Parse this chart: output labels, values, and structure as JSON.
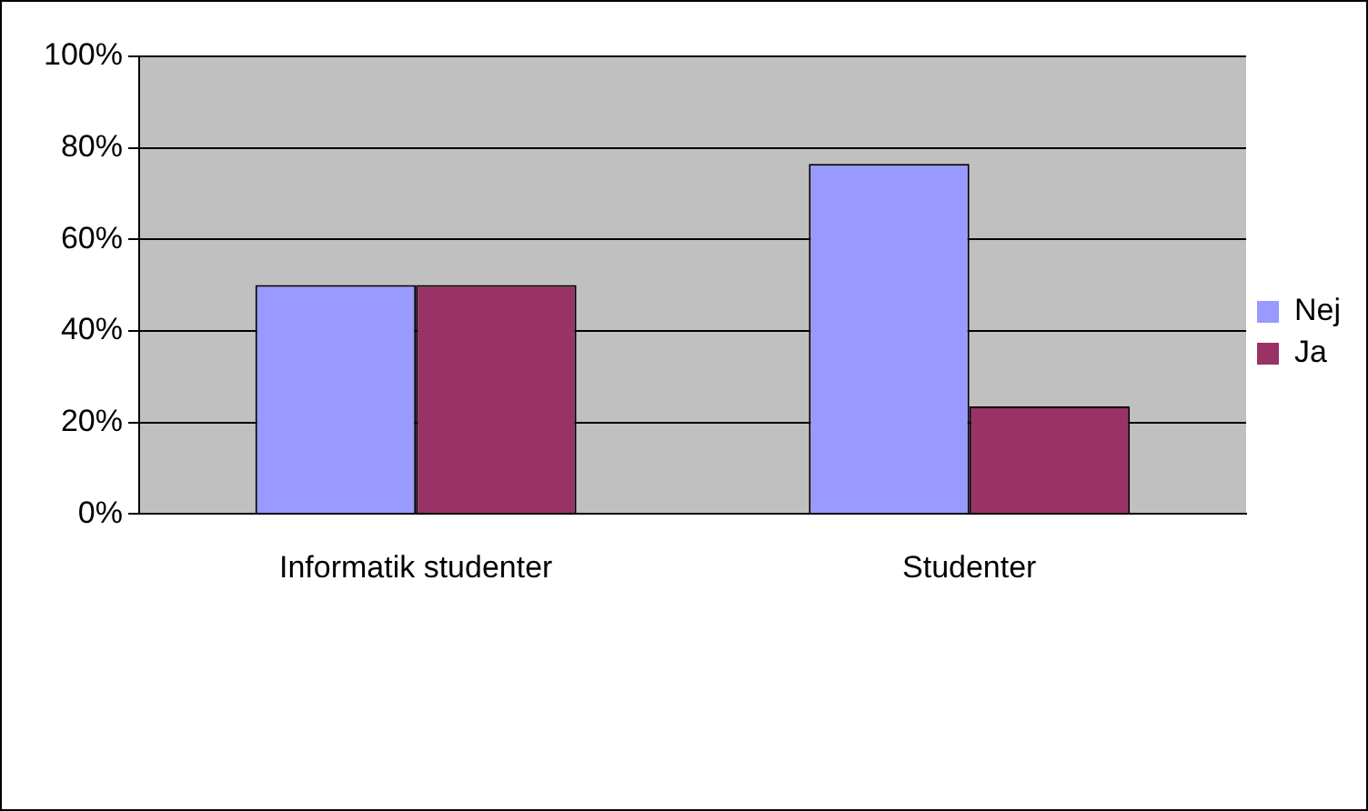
{
  "chart_data": {
    "type": "bar",
    "categories": [
      "Informatik studenter",
      "Studenter"
    ],
    "series": [
      {
        "name": "Nej",
        "color": "#9999ff",
        "values": [
          50,
          76.5
        ]
      },
      {
        "name": "Ja",
        "color": "#993366",
        "values": [
          50,
          23.5
        ]
      }
    ],
    "ylim": [
      0,
      100
    ],
    "yticks": [
      {
        "value": 0,
        "label": "0%"
      },
      {
        "value": 20,
        "label": "20%"
      },
      {
        "value": 40,
        "label": "40%"
      },
      {
        "value": 60,
        "label": "60%"
      },
      {
        "value": 80,
        "label": "80%"
      },
      {
        "value": 100,
        "label": "100%"
      }
    ],
    "grid": "y",
    "legend": "right"
  }
}
